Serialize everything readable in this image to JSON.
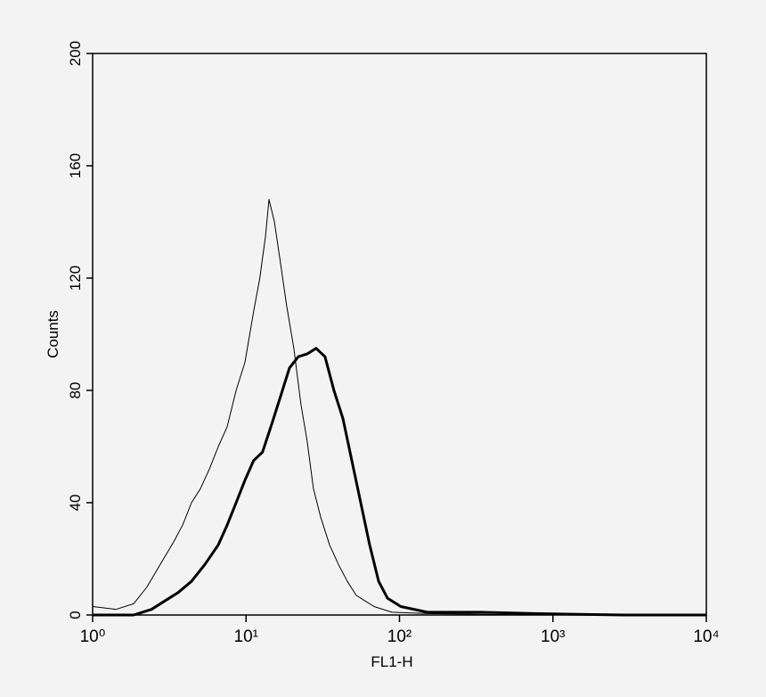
{
  "chart_data": {
    "type": "line",
    "xlabel": "FL1-H",
    "ylabel": "Counts",
    "log_x": true,
    "xlim": [
      1,
      10000
    ],
    "xticks": [
      {
        "value": 1,
        "label": "10⁰"
      },
      {
        "value": 10,
        "label": "10¹"
      },
      {
        "value": 100,
        "label": "10²"
      },
      {
        "value": 1000,
        "label": "10³"
      },
      {
        "value": 10000,
        "label": "10⁴"
      }
    ],
    "ylim": [
      0,
      200
    ],
    "yticks": [
      0,
      40,
      80,
      120,
      160,
      200
    ],
    "series": [
      {
        "color": "#000000",
        "width": 1,
        "x": [
          1.0,
          1.42,
          1.85,
          2.26,
          2.76,
          3.37,
          3.86,
          4.41,
          5.04,
          5.77,
          6.59,
          7.53,
          8.61,
          9.84,
          11.2,
          12.3,
          13.4,
          14.1,
          15.3,
          16.8,
          18.4,
          20.5,
          22.8,
          25.0,
          27.5,
          30.6,
          35.0,
          40.0,
          45.7,
          52.3,
          59.8,
          68.3,
          89.3,
          152,
          758,
          10000
        ],
        "values": [
          3,
          2,
          4,
          10,
          18,
          26,
          32,
          40,
          45,
          52,
          60,
          67,
          80,
          90,
          108,
          120,
          135,
          148,
          140,
          125,
          110,
          95,
          75,
          62,
          45,
          35,
          25,
          18,
          12,
          7,
          5,
          3,
          1,
          0.5,
          0,
          0
        ]
      },
      {
        "color": "#000000",
        "width": 3,
        "x": [
          1.0,
          1.85,
          2.42,
          2.95,
          3.61,
          4.41,
          5.39,
          6.59,
          7.53,
          8.61,
          9.84,
          11.2,
          12.8,
          14.7,
          16.8,
          19.2,
          21.9,
          25.0,
          28.6,
          32.7,
          37.4,
          42.8,
          48.9,
          55.9,
          63.9,
          73.1,
          83.5,
          102,
          152,
          340,
          758,
          2880,
          10000
        ],
        "values": [
          0,
          0,
          2,
          5,
          8,
          12,
          18,
          25,
          32,
          40,
          48,
          55,
          58,
          68,
          78,
          88,
          92,
          93,
          95,
          92,
          80,
          70,
          55,
          40,
          25,
          12,
          6,
          3,
          1,
          1,
          0.5,
          0,
          0
        ]
      }
    ]
  }
}
